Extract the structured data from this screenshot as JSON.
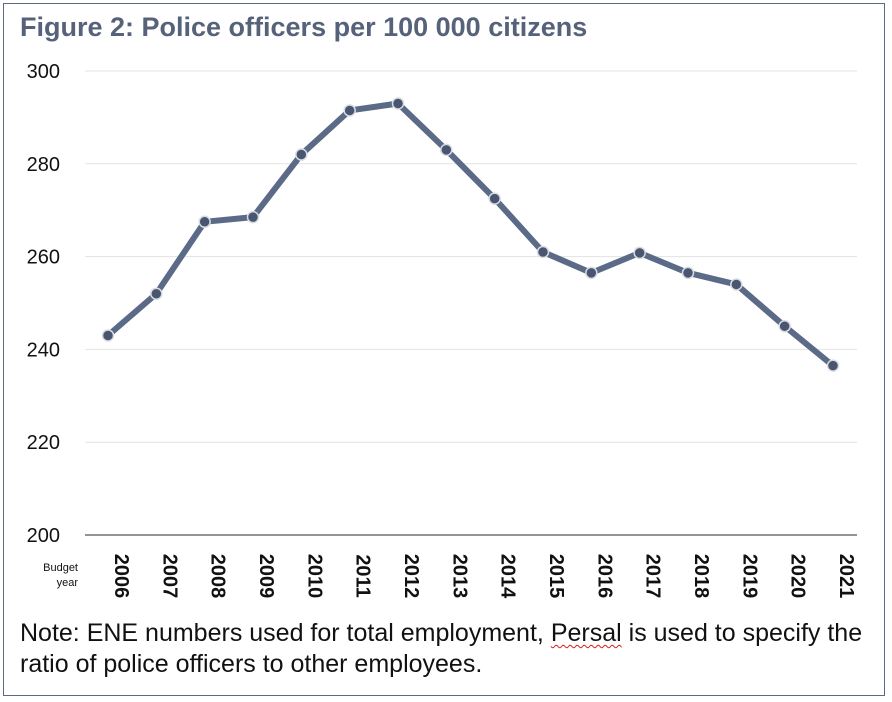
{
  "chart_data": {
    "type": "line",
    "title": "Figure 2: Police officers per 100 000 citizens",
    "xlabel": "Budget year",
    "ylabel": "",
    "ylim": [
      200,
      300
    ],
    "yticks": [
      200,
      220,
      240,
      260,
      280,
      300
    ],
    "grid": true,
    "categories": [
      "2006",
      "2007",
      "2008",
      "2009",
      "2010",
      "2011",
      "2012",
      "2013",
      "2014",
      "2015",
      "2016",
      "2017",
      "2018",
      "2019",
      "2020",
      "2021"
    ],
    "series": [
      {
        "name": "Police officers per 100 000 citizens",
        "values": [
          243,
          252,
          267.5,
          268.5,
          282,
          291.5,
          293,
          283,
          272.5,
          261,
          256.5,
          260.8,
          256.5,
          254,
          245,
          236.5
        ]
      }
    ],
    "colors": {
      "line": "#5b6a86",
      "marker": "#4a5670",
      "marker_edge": "#d7dbe4",
      "grid": "#e3e3e3",
      "axis": "#555555"
    }
  },
  "note": {
    "before": "Note: ENE  numbers used for total employment, ",
    "flagged_word": "Persal",
    "after": " is used to specify the ratio of police officers to other employees."
  }
}
